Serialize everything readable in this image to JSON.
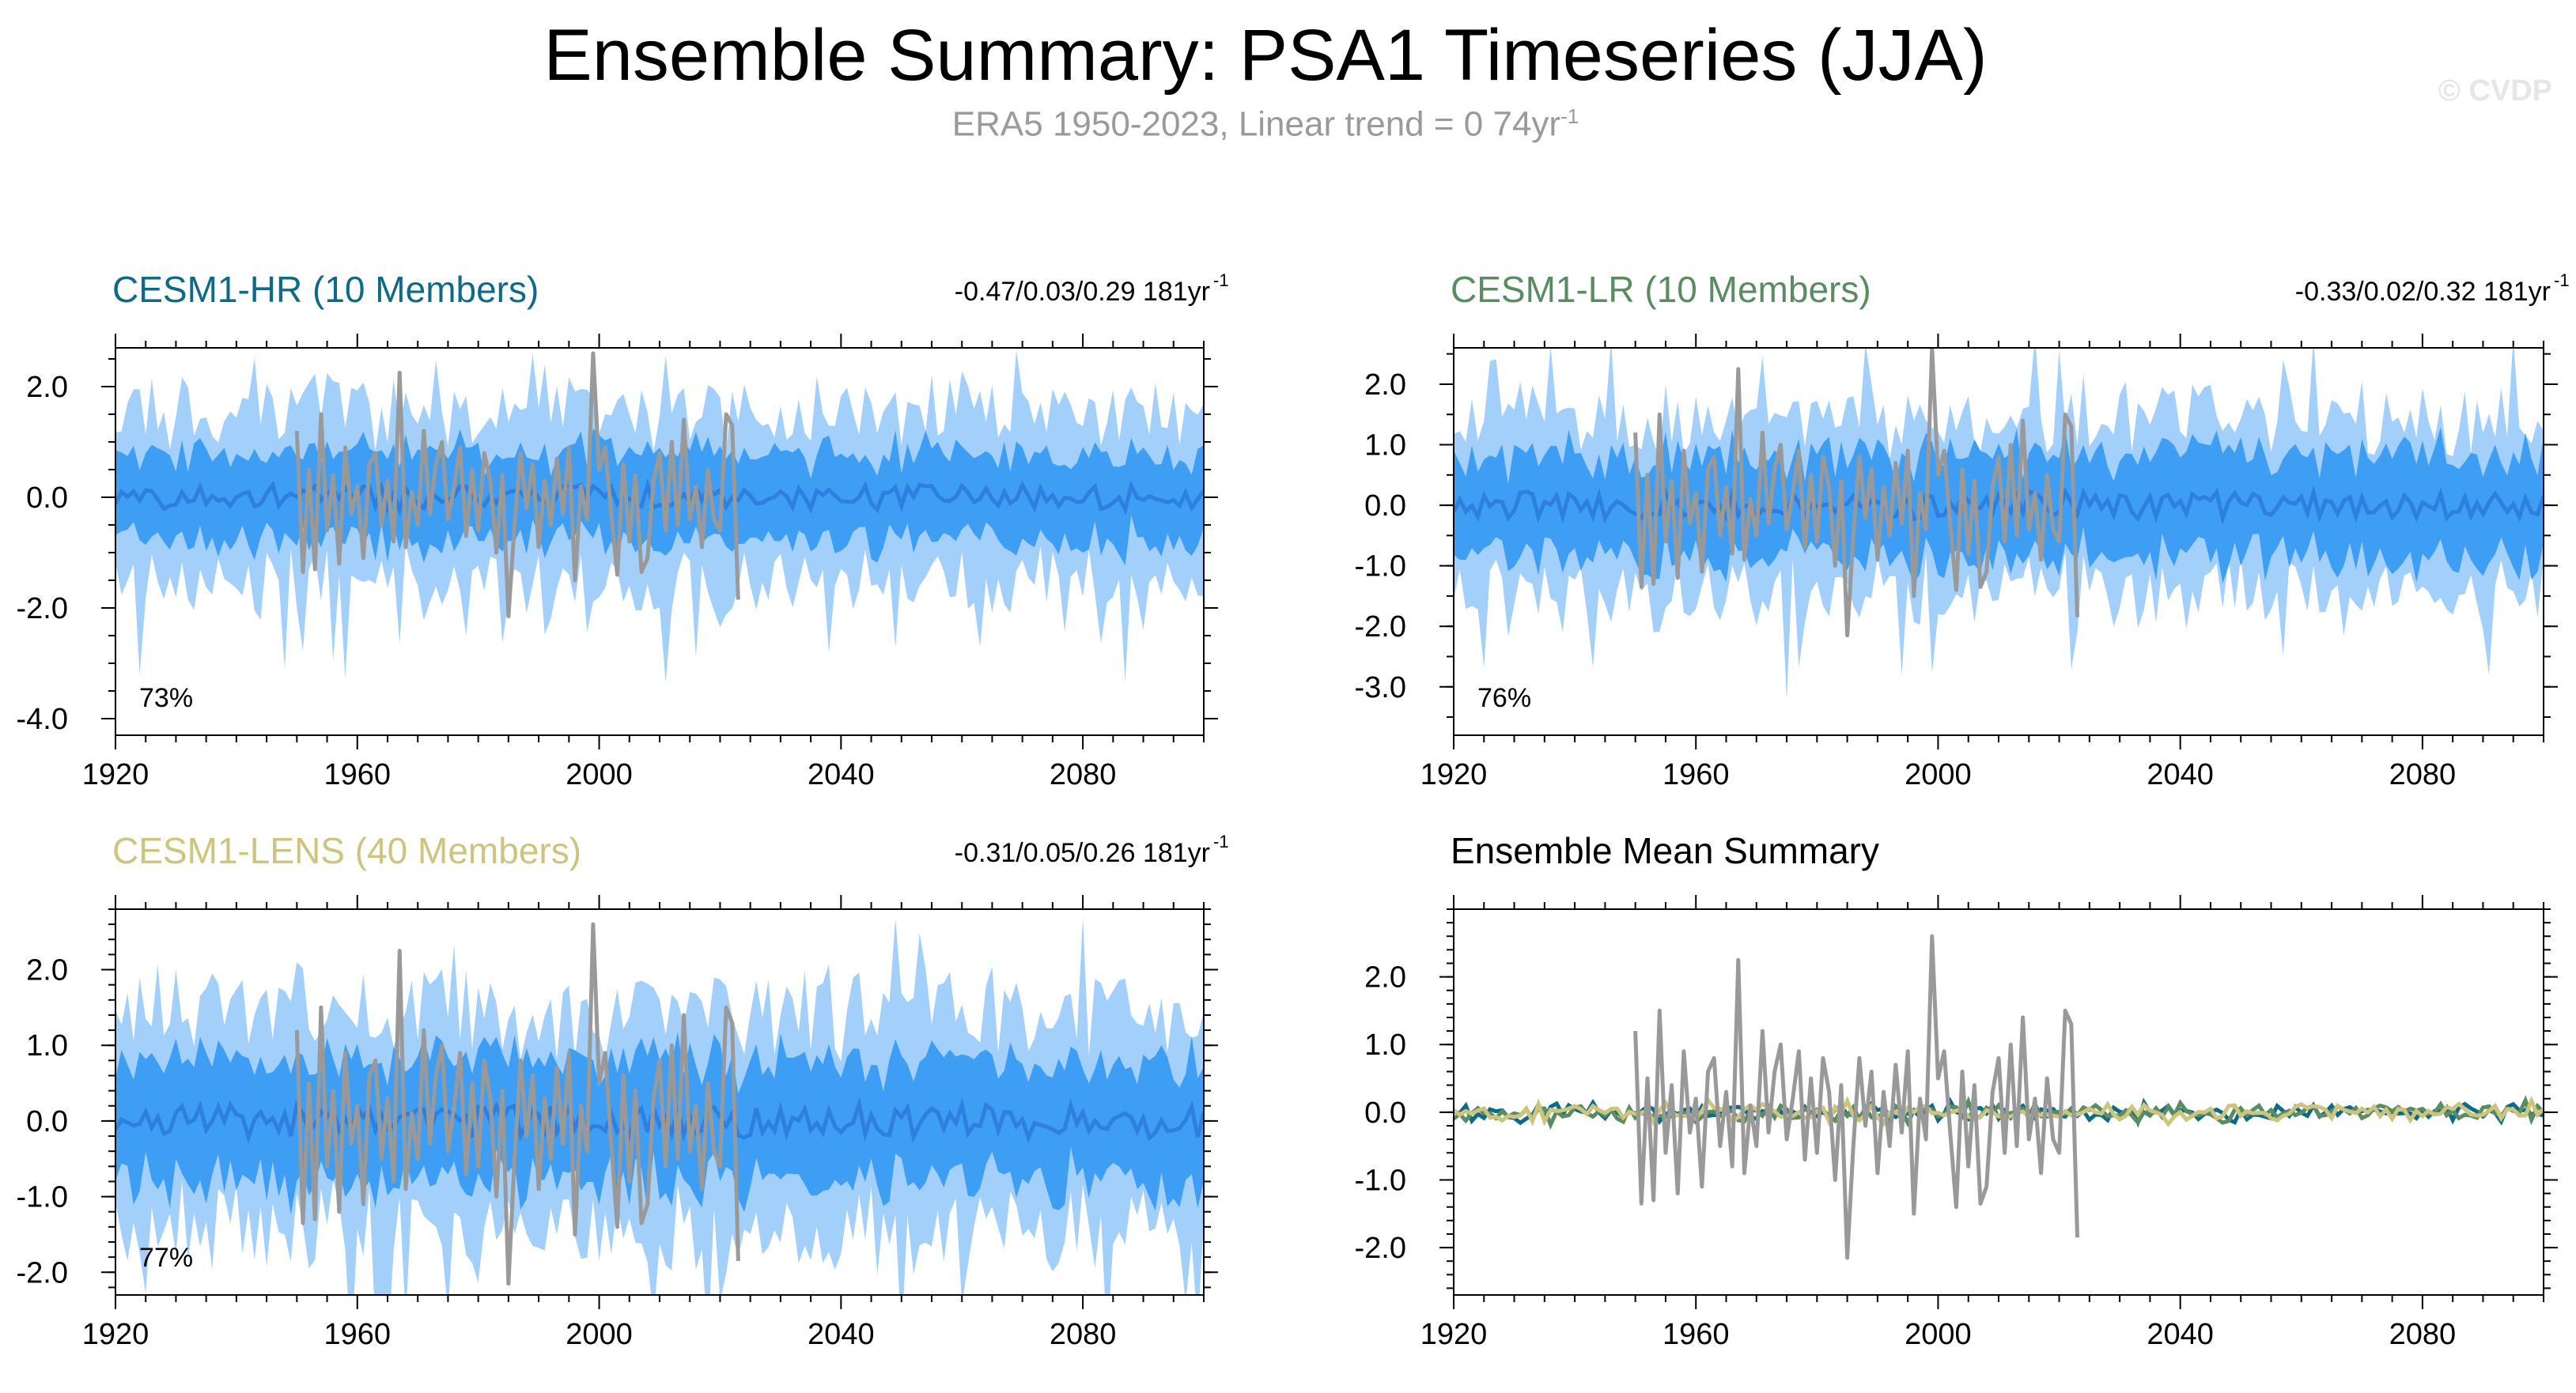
{
  "header": {
    "title": "Ensemble Summary: PSA1 Timeseries (JJA)",
    "subtitle_main": "ERA5 1950-2023, Linear trend = 0 74yr",
    "subtitle_sup": "-1",
    "watermark": "© CVDP"
  },
  "colors": {
    "outer_band": "#a3d0fb",
    "inner_band": "#3d9ef3",
    "ens_mean": "#2e7fe0",
    "obs": "#999999",
    "hr": "#0d6a88",
    "lr": "#5a8c62",
    "lens": "#cdc57d"
  },
  "chart_data": [
    {
      "id": "hr",
      "type": "area",
      "title": "CESM1-HR (10 Members)",
      "title_color": "#0d6a88",
      "stats": "-0.47/0.03/0.29 181yr",
      "stats_sup": "-1",
      "pct_label": "73%",
      "xlim": [
        1920,
        2100
      ],
      "ylim": [
        -4.3,
        2.7
      ],
      "yticks": [
        2.0,
        0.0,
        -2.0,
        -4.0
      ],
      "ytick_labels": [
        "2.0",
        "0.0",
        "-2.0",
        "-4.0"
      ],
      "xticks": [
        1920,
        1960,
        2000,
        2040,
        2080
      ],
      "xtick_labels": [
        "1920",
        "1960",
        "2000",
        "2040",
        "2080"
      ],
      "outer_half": 1.5,
      "inner_half": 0.75,
      "seed": 11
    },
    {
      "id": "lr",
      "type": "area",
      "title": "CESM1-LR (10 Members)",
      "title_color": "#5a8c62",
      "stats": "-0.33/0.02/0.32 181yr",
      "stats_sup": "-1",
      "pct_label": "76%",
      "xlim": [
        1920,
        2100
      ],
      "ylim": [
        -3.8,
        2.6
      ],
      "yticks": [
        2.0,
        1.0,
        0.0,
        -1.0,
        -2.0,
        -3.0
      ],
      "ytick_labels": [
        "2.0",
        "1.0",
        "0.0",
        "-1.0",
        "-2.0",
        "-3.0"
      ],
      "xticks": [
        1920,
        1960,
        2000,
        2040,
        2080
      ],
      "xtick_labels": [
        "1920",
        "1960",
        "2000",
        "2040",
        "2080"
      ],
      "outer_half": 1.4,
      "inner_half": 0.8,
      "seed": 23
    },
    {
      "id": "lens",
      "type": "area",
      "title": "CESM1-LENS (40 Members)",
      "title_color": "#cdc57d",
      "stats": "-0.31/0.05/0.26 181yr",
      "stats_sup": "-1",
      "pct_label": "77%",
      "xlim": [
        1920,
        2100
      ],
      "ylim": [
        -2.3,
        2.8
      ],
      "yticks": [
        2.0,
        1.0,
        0.0,
        -1.0,
        -2.0
      ],
      "ytick_labels": [
        "2.0",
        "1.0",
        "0.0",
        "-1.0",
        "-2.0"
      ],
      "xticks": [
        1920,
        1960,
        2000,
        2040,
        2080
      ],
      "xtick_labels": [
        "1920",
        "1960",
        "2000",
        "2040",
        "2080"
      ],
      "outer_half": 1.4,
      "inner_half": 0.75,
      "seed": 37
    },
    {
      "id": "summary",
      "type": "line",
      "title": "Ensemble Mean Summary",
      "title_color": "#000000",
      "xlim": [
        1920,
        2100
      ],
      "ylim": [
        -2.7,
        3.0
      ],
      "yticks": [
        2.0,
        1.0,
        0.0,
        -1.0,
        -2.0
      ],
      "ytick_labels": [
        "2.0",
        "1.0",
        "0.0",
        "-1.0",
        "-2.0"
      ],
      "xticks": [
        1920,
        1960,
        2000,
        2040,
        2080
      ],
      "xtick_labels": [
        "1920",
        "1960",
        "2000",
        "2040",
        "2080"
      ],
      "series": [
        {
          "name": "CESM1-HR",
          "color": "#0d6a88",
          "seed": 101
        },
        {
          "name": "CESM1-LR",
          "color": "#5a8c62",
          "seed": 202
        },
        {
          "name": "CESM1-LENS",
          "color": "#cdc57d",
          "seed": 303
        }
      ]
    }
  ],
  "observations": {
    "name": "ERA5",
    "years": [
      1950,
      1951,
      1952,
      1953,
      1954,
      1955,
      1956,
      1957,
      1958,
      1959,
      1960,
      1961,
      1962,
      1963,
      1964,
      1965,
      1966,
      1967,
      1968,
      1969,
      1970,
      1971,
      1972,
      1973,
      1974,
      1975,
      1976,
      1977,
      1978,
      1979,
      1980,
      1981,
      1982,
      1983,
      1984,
      1985,
      1986,
      1987,
      1988,
      1989,
      1990,
      1991,
      1992,
      1993,
      1994,
      1995,
      1996,
      1997,
      1998,
      1999,
      2000,
      2001,
      2002,
      2003,
      2004,
      2005,
      2006,
      2007,
      2008,
      2009,
      2010,
      2011,
      2012,
      2013,
      2014,
      2015,
      2016,
      2017,
      2018,
      2019,
      2020,
      2021,
      2022,
      2023
    ],
    "values": [
      1.2,
      -1.35,
      0.5,
      -1.3,
      1.5,
      -0.6,
      0.4,
      -1.2,
      0.9,
      -0.3,
      0.2,
      -1.1,
      0.6,
      0.8,
      -0.5,
      0.3,
      -0.8,
      2.25,
      -0.9,
      0.1,
      -0.5,
      1.2,
      -0.3,
      0.6,
      1.0,
      -0.4,
      0.2,
      0.9,
      -0.7,
      0.5,
      -0.6,
      0.8,
      0.3,
      -1.0,
      0.4,
      -2.15,
      -0.5,
      0.8,
      -0.2,
      0.6,
      -0.9,
      0.3,
      -0.5,
      0.7,
      -0.3,
      0.9,
      -1.5,
      0.2,
      -0.4,
      2.6,
      0.5,
      0.9,
      -0.3,
      -1.4,
      0.6,
      -0.8,
      0.4,
      -1.35,
      -1.1,
      0.3,
      0.8,
      -0.6,
      1.0,
      -0.5,
      1.4,
      -0.4,
      0.2,
      -0.9,
      0.5,
      -0.4,
      -0.6,
      1.5,
      1.3,
      -1.85
    ]
  }
}
